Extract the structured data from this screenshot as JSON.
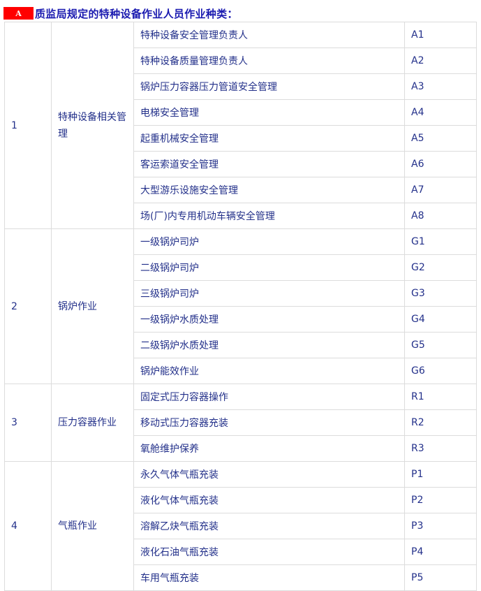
{
  "header": {
    "badge": "A",
    "title": "质监局规定的特种设备作业人员作业种类："
  },
  "groups": [
    {
      "no": "1",
      "name": "特种设备相关管理",
      "items": [
        {
          "name": "特种设备安全管理负责人",
          "code": "A1"
        },
        {
          "name": "特种设备质量管理负责人",
          "code": "A2"
        },
        {
          "name": "锅炉压力容器压力管道安全管理",
          "code": "A3"
        },
        {
          "name": "电梯安全管理",
          "code": "A4"
        },
        {
          "name": "起重机械安全管理",
          "code": "A5"
        },
        {
          "name": "客运索道安全管理",
          "code": "A6"
        },
        {
          "name": "大型游乐设施安全管理",
          "code": "A7"
        },
        {
          "name": "场(厂)内专用机动车辆安全管理",
          "code": "A8"
        }
      ]
    },
    {
      "no": "2",
      "name": "锅炉作业",
      "items": [
        {
          "name": "一级锅炉司炉",
          "code": "G1"
        },
        {
          "name": "二级锅炉司炉",
          "code": "G2"
        },
        {
          "name": "三级锅炉司炉",
          "code": "G3"
        },
        {
          "name": "一级锅炉水质处理",
          "code": "G4"
        },
        {
          "name": "二级锅炉水质处理",
          "code": "G5"
        },
        {
          "name": "锅炉能效作业",
          "code": "G6"
        }
      ]
    },
    {
      "no": "3",
      "name": "压力容器作业",
      "items": [
        {
          "name": "固定式压力容器操作",
          "code": "R1"
        },
        {
          "name": "移动式压力容器充装",
          "code": "R2"
        },
        {
          "name": "氧舱维护保养",
          "code": "R3"
        }
      ]
    },
    {
      "no": "4",
      "name": "气瓶作业",
      "items": [
        {
          "name": "永久气体气瓶充装",
          "code": "P1"
        },
        {
          "name": "液化气体气瓶充装",
          "code": "P2"
        },
        {
          "name": "溶解乙炔气瓶充装",
          "code": "P3"
        },
        {
          "name": "液化石油气瓶充装",
          "code": "P4"
        },
        {
          "name": "车用气瓶充装",
          "code": "P5"
        }
      ]
    }
  ]
}
